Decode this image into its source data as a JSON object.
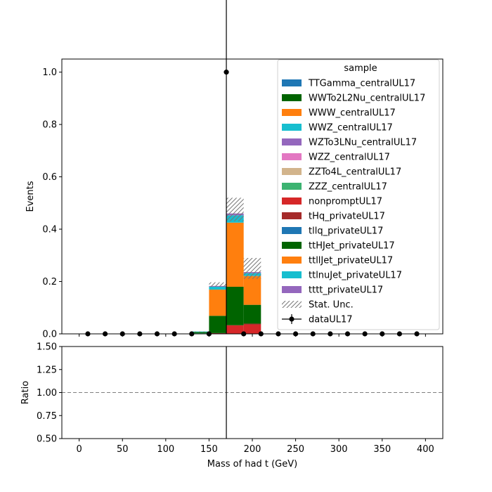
{
  "chart_data": [
    {
      "type": "bar",
      "stacked": true,
      "xlabel": "",
      "ylabel": "Events",
      "xlim": [
        -20,
        420
      ],
      "ylim": [
        0,
        1.05
      ],
      "xticks": [
        0,
        50,
        100,
        150,
        200,
        250,
        300,
        350,
        400
      ],
      "yticks": [
        "0.0",
        "0.2",
        "0.4",
        "0.6",
        "0.8",
        "1.0"
      ],
      "bin_edges": [
        130,
        150,
        170,
        190,
        210
      ],
      "legend": {
        "title": "sample",
        "placement": "top-right",
        "stat_unc_label": "Stat. Unc.",
        "data_label": "dataUL17"
      },
      "series": [
        {
          "name": "TTGamma_centralUL17",
          "color": "#1f77b4",
          "values": [
            0,
            0,
            0,
            0
          ]
        },
        {
          "name": "WWTo2L2Nu_centralUL17",
          "color": "#006400",
          "values": [
            0,
            0,
            0,
            0
          ]
        },
        {
          "name": "WWW_centralUL17",
          "color": "#ff7f0e",
          "values": [
            0,
            0,
            0,
            0
          ]
        },
        {
          "name": "WWZ_centralUL17",
          "color": "#17becf",
          "values": [
            0,
            0,
            0,
            0
          ]
        },
        {
          "name": "WZTo3LNu_centralUL17",
          "color": "#9467bd",
          "values": [
            0,
            0,
            0,
            0
          ]
        },
        {
          "name": "WZZ_centralUL17",
          "color": "#e377c2",
          "values": [
            0,
            0,
            0,
            0
          ]
        },
        {
          "name": "ZZTo4L_centralUL17",
          "color": "#d2b48c",
          "values": [
            0,
            0,
            0,
            0
          ]
        },
        {
          "name": "ZZZ_centralUL17",
          "color": "#3cb371",
          "values": [
            0.003,
            0,
            0,
            0
          ]
        },
        {
          "name": "nonpromptUL17",
          "color": "#d62728",
          "values": [
            0,
            0,
            0.033,
            0.035
          ]
        },
        {
          "name": "tHq_privateUL17",
          "color": "#a52a2a",
          "values": [
            0,
            0.003,
            0,
            0.004
          ]
        },
        {
          "name": "tllq_privateUL17",
          "color": "#1f77b4",
          "values": [
            0,
            0,
            0,
            0
          ]
        },
        {
          "name": "ttHJet_privateUL17",
          "color": "#006400",
          "values": [
            0.004,
            0.066,
            0.147,
            0.072
          ]
        },
        {
          "name": "ttllJet_privateUL17",
          "color": "#ff7f0e",
          "values": [
            0,
            0.1,
            0.245,
            0.11
          ]
        },
        {
          "name": "ttlnuJet_privateUL17",
          "color": "#17becf",
          "values": [
            0.002,
            0.011,
            0.028,
            0.011
          ]
        },
        {
          "name": "tttt_privateUL17",
          "color": "#9467bd",
          "values": [
            0,
            0.003,
            0.007,
            0.004
          ]
        }
      ],
      "stat_unc_upper": [
        0.009,
        0.197,
        0.52,
        0.29
      ],
      "stat_unc_lower": [
        0.009,
        0.18,
        0.43,
        0.21
      ],
      "data_points": {
        "x": [
          10,
          30,
          50,
          70,
          90,
          110,
          130,
          150,
          170,
          190,
          210,
          230,
          250,
          270,
          290,
          310,
          330,
          350,
          370,
          390
        ],
        "y": [
          0,
          0,
          0,
          0,
          0,
          0,
          0,
          0,
          1,
          0,
          0,
          0,
          0,
          0,
          0,
          0,
          0,
          0,
          0,
          0
        ],
        "err_upper": [
          0,
          0,
          0,
          0,
          0,
          0,
          0,
          0,
          1.0,
          0,
          0,
          0,
          0,
          0,
          0,
          0,
          0,
          0,
          0,
          0
        ],
        "err_lower": [
          0,
          0,
          0,
          0,
          0,
          0,
          0,
          0,
          1.0,
          0,
          0,
          0,
          0,
          0,
          0,
          0,
          0,
          0,
          0,
          0
        ]
      }
    },
    {
      "type": "line",
      "xlabel": "Mass of had t (GeV)",
      "ylabel": "Ratio",
      "xlim": [
        -20,
        420
      ],
      "ylim": [
        0.5,
        1.5
      ],
      "xticks": [
        0,
        50,
        100,
        150,
        200,
        250,
        300,
        350,
        400
      ],
      "yticks": [
        "0.50",
        "0.75",
        "1.00",
        "1.25",
        "1.50"
      ],
      "reference_line": 1.0,
      "error_bars": [
        {
          "x": 170,
          "low": 0.5,
          "high": 1.5
        }
      ]
    }
  ]
}
